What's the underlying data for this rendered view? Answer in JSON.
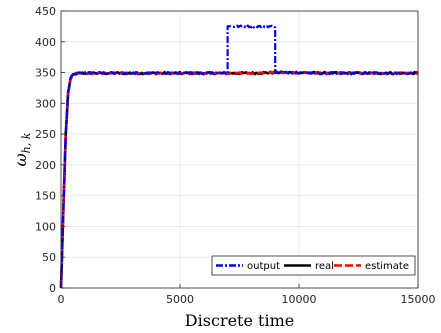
{
  "chart_data": {
    "type": "line",
    "xlabel": "Discrete time",
    "ylabel": "ω",
    "ylabel_subscript": "h, k",
    "xlim": [
      0,
      15000
    ],
    "ylim": [
      0,
      450
    ],
    "xticks": [
      0,
      5000,
      10000,
      15000
    ],
    "yticks": [
      0,
      50,
      100,
      150,
      200,
      250,
      300,
      350,
      400,
      450
    ],
    "xtick_labels": [
      "0",
      "5000",
      "10000",
      "15000"
    ],
    "ytick_labels": [
      "0",
      "50",
      "100",
      "150",
      "200",
      "250",
      "300",
      "350",
      "400",
      "450"
    ],
    "grid": true,
    "legend_position": "bottom-right",
    "series": [
      {
        "name": "output",
        "color": "#0000ff",
        "style": "dash-dot",
        "x": [
          0,
          100,
          200,
          300,
          400,
          500,
          600,
          800,
          1000,
          2000,
          3000,
          4000,
          5000,
          6000,
          7000,
          7000,
          7500,
          8000,
          8500,
          9000,
          9000,
          10000,
          11000,
          12000,
          13000,
          14000,
          15000
        ],
        "values": [
          0,
          130,
          250,
          318,
          340,
          346,
          348,
          349,
          349,
          349,
          349,
          349,
          349,
          349,
          349,
          425,
          425,
          425,
          425,
          425,
          350,
          350,
          349,
          349,
          349,
          349,
          349
        ]
      },
      {
        "name": "real",
        "color": "#000000",
        "style": "solid",
        "x": [
          0,
          100,
          200,
          300,
          400,
          500,
          600,
          800,
          1000,
          2000,
          3000,
          4000,
          5000,
          6000,
          7000,
          8000,
          9000,
          10000,
          11000,
          12000,
          13000,
          14000,
          15000
        ],
        "values": [
          0,
          130,
          250,
          318,
          340,
          346,
          348,
          349,
          349,
          349,
          349,
          349,
          349,
          349,
          349,
          349,
          350,
          350,
          349,
          349,
          349,
          349,
          349
        ]
      },
      {
        "name": "estimate",
        "color": "#ff0000",
        "style": "dashed",
        "x": [
          0,
          100,
          200,
          300,
          400,
          500,
          600,
          800,
          1000,
          2000,
          3000,
          4000,
          5000,
          6000,
          7000,
          8000,
          9000,
          10000,
          11000,
          12000,
          13000,
          14000,
          15000
        ],
        "values": [
          0,
          128,
          248,
          316,
          339,
          345,
          348,
          349,
          349,
          349,
          349,
          349,
          349,
          349,
          349,
          349,
          350,
          350,
          349,
          349,
          349,
          349,
          349
        ]
      }
    ]
  }
}
